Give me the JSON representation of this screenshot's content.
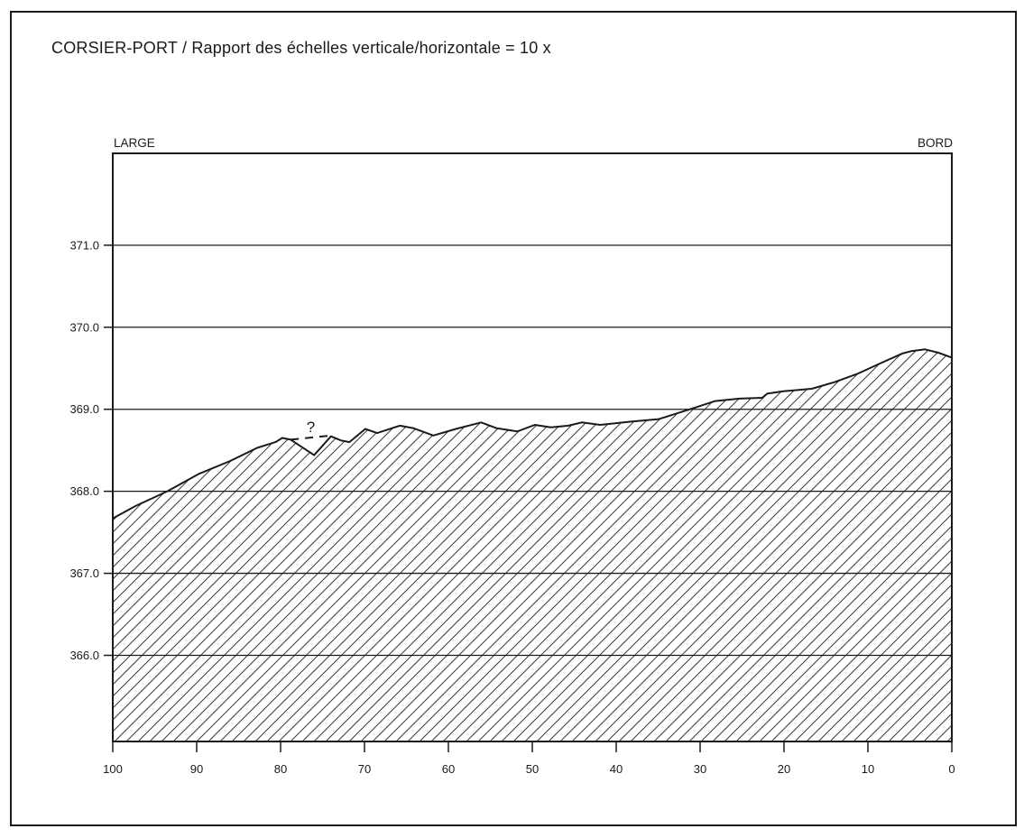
{
  "colors": {
    "ink": "#1a1a1a",
    "hatch": "#3a3a3a",
    "background": "#ffffff"
  },
  "chart_data": {
    "type": "area",
    "title": "CORSIER-PORT / Rapport des échelles verticale/horizontale = 10 x",
    "left_label": "LARGE",
    "right_label": "BORD",
    "x_ticks": [
      100,
      90,
      80,
      70,
      60,
      50,
      40,
      30,
      20,
      10,
      0
    ],
    "y_ticks": [
      371.0,
      370.0,
      369.0,
      368.0,
      367.0,
      366.0
    ],
    "xlim": [
      100,
      0
    ],
    "ylim": [
      364.95,
      372.12
    ],
    "grid": "horizontal-only",
    "legend": "none",
    "hatch_fill": "diagonal-forward-slash",
    "series": [
      {
        "name": "terrain-profile",
        "units": {
          "x": "m (distance, BORD=0)",
          "y": "m (altitude)"
        },
        "points": [
          [
            100.0,
            367.67
          ],
          [
            97.3,
            367.82
          ],
          [
            93.5,
            368.0
          ],
          [
            89.8,
            368.21
          ],
          [
            86.0,
            368.37
          ],
          [
            82.8,
            368.53
          ],
          [
            80.6,
            368.6
          ],
          [
            79.8,
            368.65
          ],
          [
            78.8,
            368.63
          ],
          [
            76.0,
            368.44
          ],
          [
            74.0,
            368.67
          ],
          [
            72.8,
            368.62
          ],
          [
            71.8,
            368.6
          ],
          [
            69.9,
            368.76
          ],
          [
            68.5,
            368.71
          ],
          [
            65.8,
            368.8
          ],
          [
            64.2,
            368.77
          ],
          [
            61.8,
            368.68
          ],
          [
            59.1,
            368.76
          ],
          [
            56.1,
            368.84
          ],
          [
            54.3,
            368.77
          ],
          [
            51.8,
            368.73
          ],
          [
            49.7,
            368.81
          ],
          [
            47.8,
            368.78
          ],
          [
            45.7,
            368.8
          ],
          [
            44.1,
            368.84
          ],
          [
            41.9,
            368.81
          ],
          [
            38.2,
            368.85
          ],
          [
            34.9,
            368.88
          ],
          [
            30.9,
            369.01
          ],
          [
            28.2,
            369.1
          ],
          [
            25.3,
            369.13
          ],
          [
            22.6,
            369.14
          ],
          [
            22.0,
            369.19
          ],
          [
            20.1,
            369.22
          ],
          [
            16.7,
            369.25
          ],
          [
            14.0,
            369.33
          ],
          [
            11.3,
            369.43
          ],
          [
            8.1,
            369.58
          ],
          [
            5.9,
            369.68
          ],
          [
            4.8,
            369.71
          ],
          [
            3.2,
            369.73
          ],
          [
            1.6,
            369.69
          ],
          [
            0.0,
            369.63
          ]
        ]
      }
    ],
    "uncertain_segment": {
      "style": "dashed",
      "points": [
        [
          78.8,
          368.63
        ],
        [
          74.0,
          368.68
        ]
      ]
    },
    "annotation": {
      "text": "?",
      "x": 76.4,
      "y": 368.72
    }
  }
}
